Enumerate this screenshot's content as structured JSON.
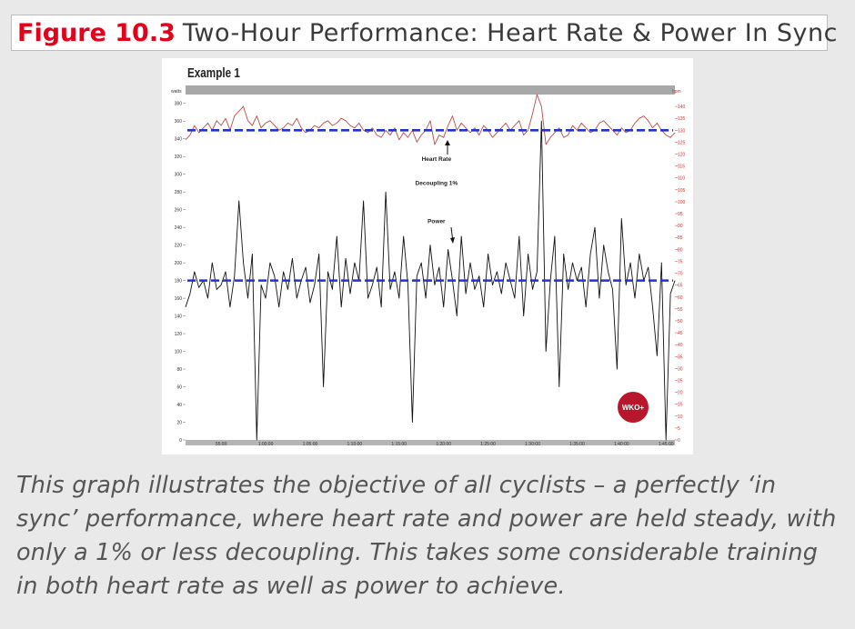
{
  "figure": {
    "label": "Figure 10.3",
    "title": "Two-Hour Performance: Heart Rate & Power In Sync"
  },
  "caption": "This graph illustrates the objective of all cyclists – a perfectly ‘in sync’ performance, where heart rate and power are held steady, with only a 1% or less decoupling. This takes some considerable training in both heart rate as well as power to achieve.",
  "chart_data": {
    "type": "line",
    "title": "Example 1",
    "y_left_label": "watts",
    "y_right_label": "bpm",
    "y_left_lim": [
      0,
      390
    ],
    "y_right_lim": [
      0,
      145
    ],
    "y_left_ticks": [
      "0",
      "20",
      "40",
      "60",
      "80",
      "100",
      "120",
      "140",
      "160",
      "180",
      "200",
      "220",
      "240",
      "260",
      "280",
      "300",
      "320",
      "340",
      "360",
      "380"
    ],
    "y_right_ticks": [
      "0",
      "5",
      "10",
      "15",
      "20",
      "25",
      "30",
      "35",
      "40",
      "45",
      "50",
      "55",
      "60",
      "65",
      "70",
      "75",
      "80",
      "85",
      "90",
      "95",
      "100",
      "105",
      "110",
      "115",
      "120",
      "125",
      "130",
      "135",
      "140"
    ],
    "x_ticks": [
      "55:00",
      "1:00:00",
      "1:05:00",
      "1:10:00",
      "1:15:00",
      "1:20:00",
      "1:25:00",
      "1:30:00",
      "1:35:00",
      "1:40:00",
      "1:45:00"
    ],
    "x_lim_minutes": [
      51,
      106
    ],
    "annotations": [
      {
        "text": "Heart Rate",
        "x": 79.2,
        "y": 315
      },
      {
        "text": "Decoupling 1%",
        "x": 79.2,
        "y": 288
      },
      {
        "text": "Power",
        "x": 79.2,
        "y": 245
      }
    ],
    "logo": "WKO+",
    "series": [
      {
        "axis": "right",
        "color": "#b94a4a",
        "x": [
          51,
          51.5,
          52,
          52.5,
          53,
          53.5,
          54,
          54.5,
          55,
          55.5,
          56,
          56.5,
          57,
          57.5,
          58,
          58.5,
          59,
          59.5,
          60,
          60.5,
          61,
          61.5,
          62,
          62.5,
          63,
          63.5,
          64,
          64.5,
          65,
          65.5,
          66,
          66.5,
          67,
          67.5,
          68,
          68.5,
          69,
          69.5,
          70,
          70.5,
          71,
          71.5,
          72,
          72.5,
          73,
          73.5,
          74,
          74.5,
          75,
          75.5,
          76,
          76.5,
          77,
          77.5,
          78,
          78.5,
          79,
          79.5,
          80,
          80.5,
          81,
          81.5,
          82,
          82.5,
          83,
          83.5,
          84,
          84.5,
          85,
          85.5,
          86,
          86.5,
          87,
          87.5,
          88,
          88.5,
          89,
          89.5,
          90,
          90.5,
          91,
          91.5,
          92,
          92.5,
          93,
          93.5,
          94,
          94.5,
          95,
          95.5,
          96,
          96.5,
          97,
          97.5,
          98,
          98.5,
          99,
          99.5,
          100,
          100.5,
          101,
          101.5,
          102,
          102.5,
          103,
          103.5,
          104,
          104.5,
          105,
          105.5,
          106
        ],
        "values": [
          126,
          128,
          132,
          129,
          131,
          133,
          130,
          134,
          132,
          135,
          130,
          136,
          138,
          140,
          134,
          132,
          136,
          131,
          133,
          134,
          132,
          130,
          131,
          133,
          132,
          135,
          131,
          129,
          130,
          132,
          131,
          133,
          134,
          132,
          133,
          135,
          134,
          132,
          131,
          133,
          130,
          129,
          131,
          128,
          127,
          130,
          128,
          131,
          126,
          129,
          127,
          130,
          125,
          128,
          130,
          134,
          124,
          128,
          127,
          132,
          136,
          130,
          133,
          131,
          129,
          131,
          128,
          132,
          130,
          127,
          129,
          131,
          133,
          130,
          132,
          134,
          128,
          130,
          137,
          145,
          140,
          124,
          127,
          129,
          131,
          127,
          128,
          132,
          130,
          133,
          131,
          129,
          130,
          133,
          134,
          132,
          130,
          128,
          131,
          129,
          130,
          133,
          135,
          136,
          134,
          131,
          133,
          130,
          128,
          127,
          129
        ]
      },
      {
        "axis": "left",
        "color": "#111111",
        "x": [
          51,
          51.5,
          52,
          52.5,
          53,
          53.5,
          54,
          54.5,
          55,
          55.5,
          56,
          56.5,
          57,
          57.5,
          58,
          58.5,
          59,
          59.5,
          60,
          60.5,
          61,
          61.5,
          62,
          62.5,
          63,
          63.5,
          64,
          64.5,
          65,
          65.5,
          66,
          66.5,
          67,
          67.5,
          68,
          68.5,
          69,
          69.5,
          70,
          70.5,
          71,
          71.5,
          72,
          72.5,
          73,
          73.5,
          74,
          74.5,
          75,
          75.5,
          76,
          76.5,
          77,
          77.5,
          78,
          78.5,
          79,
          79.5,
          80,
          80.5,
          81,
          81.5,
          82,
          82.5,
          83,
          83.5,
          84,
          84.5,
          85,
          85.5,
          86,
          86.5,
          87,
          87.5,
          88,
          88.5,
          89,
          89.5,
          90,
          90.5,
          91,
          91.5,
          92,
          92.5,
          93,
          93.5,
          94,
          94.5,
          95,
          95.5,
          96,
          96.5,
          97,
          97.5,
          98,
          98.5,
          99,
          99.5,
          100,
          100.5,
          101,
          101.5,
          102,
          102.5,
          103,
          103.5,
          104,
          104.5,
          105,
          105.5,
          106
        ],
        "values": [
          150,
          165,
          190,
          172,
          180,
          160,
          200,
          170,
          175,
          190,
          150,
          185,
          270,
          200,
          160,
          210,
          0,
          175,
          160,
          200,
          185,
          150,
          190,
          170,
          205,
          160,
          180,
          195,
          155,
          175,
          210,
          60,
          190,
          170,
          230,
          150,
          205,
          165,
          200,
          180,
          270,
          160,
          175,
          195,
          150,
          280,
          170,
          190,
          160,
          230,
          175,
          20,
          185,
          200,
          160,
          220,
          175,
          195,
          150,
          215,
          180,
          140,
          230,
          165,
          200,
          170,
          185,
          150,
          210,
          175,
          190,
          165,
          200,
          180,
          160,
          230,
          140,
          210,
          170,
          190,
          360,
          100,
          180,
          230,
          60,
          210,
          170,
          200,
          180,
          195,
          150,
          210,
          240,
          160,
          220,
          190,
          170,
          80,
          250,
          175,
          200,
          160,
          210,
          180,
          195,
          150,
          95,
          200,
          0,
          165,
          180
        ]
      }
    ],
    "reference_lines": [
      {
        "series": "heart rate",
        "axis": "right",
        "value": 130,
        "color": "#2233cc",
        "style": "dashed"
      },
      {
        "series": "power",
        "axis": "left",
        "value": 180,
        "color": "#2233cc",
        "style": "dashed"
      }
    ]
  }
}
